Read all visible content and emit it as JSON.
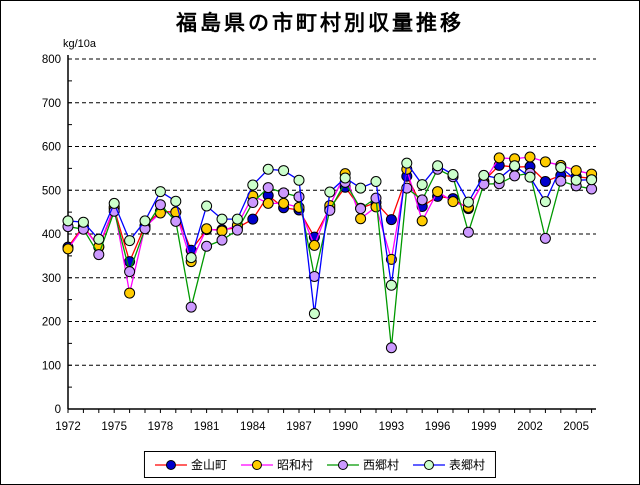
{
  "title": "福島県の市町村別収量推移",
  "chart_data": {
    "type": "line",
    "title": "福島県の市町村別収量推移",
    "unit_label": "kg/10a",
    "xlabel": "",
    "ylabel": "kg/10a",
    "ylim": [
      0,
      800
    ],
    "y_ticks": [
      0,
      100,
      200,
      300,
      400,
      500,
      600,
      700,
      800
    ],
    "y_minor_tick_step": 50,
    "grid": "horizontal-dashed-black",
    "legend_position": "bottom-center",
    "x_years": [
      1972,
      1973,
      1974,
      1975,
      1976,
      1977,
      1978,
      1979,
      1980,
      1981,
      1982,
      1983,
      1984,
      1985,
      1986,
      1987,
      1988,
      1989,
      1990,
      1991,
      1992,
      1993,
      1994,
      1995,
      1996,
      1997,
      1998,
      1999,
      2000,
      2001,
      2002,
      2003,
      2004,
      2005,
      2006
    ],
    "x_tick_labels": [
      "1972",
      "1975",
      "1978",
      "1981",
      "1984",
      "1987",
      "1990",
      "1993",
      "1996",
      "1999",
      "2002",
      "2005"
    ],
    "series": [
      {
        "name": "金山町",
        "key": "kaneyama",
        "line_color": "#FF0000",
        "marker_color": "#0000CC",
        "values": [
          370,
          418,
          370,
          458,
          337,
          419,
          452,
          450,
          363,
          410,
          410,
          414,
          434,
          488,
          460,
          455,
          393,
          459,
          507,
          459,
          472,
          433,
          532,
          463,
          486,
          481,
          458,
          521,
          557,
          553,
          554,
          520,
          534,
          531,
          527
        ]
      },
      {
        "name": "昭和村",
        "key": "showa",
        "line_color": "#FF00FF",
        "marker_color": "#FFCC00",
        "values": [
          366,
          415,
          371,
          462,
          265,
          416,
          448,
          450,
          337,
          412,
          407,
          420,
          487,
          470,
          470,
          461,
          374,
          465,
          538,
          435,
          462,
          342,
          548,
          430,
          497,
          474,
          461,
          519,
          574,
          572,
          576,
          565,
          557,
          545,
          537
        ]
      },
      {
        "name": "西郷村",
        "key": "nishigo",
        "line_color": "#009900",
        "marker_color": "#CC99FF",
        "values": [
          417,
          411,
          353,
          452,
          314,
          412,
          467,
          429,
          233,
          372,
          386,
          409,
          472,
          506,
          494,
          485,
          303,
          454,
          518,
          458,
          482,
          140,
          505,
          478,
          548,
          531,
          404,
          514,
          515,
          533,
          539,
          390,
          521,
          510,
          503
        ]
      },
      {
        "name": "表郷村",
        "key": "omotego",
        "line_color": "#0000FF",
        "marker_color": "#CCFFCC",
        "values": [
          430,
          427,
          388,
          470,
          385,
          430,
          497,
          475,
          346,
          464,
          434,
          434,
          512,
          548,
          545,
          523,
          218,
          496,
          528,
          505,
          520,
          283,
          562,
          513,
          556,
          536,
          473,
          534,
          527,
          556,
          530,
          474,
          552,
          523,
          524
        ]
      }
    ]
  }
}
